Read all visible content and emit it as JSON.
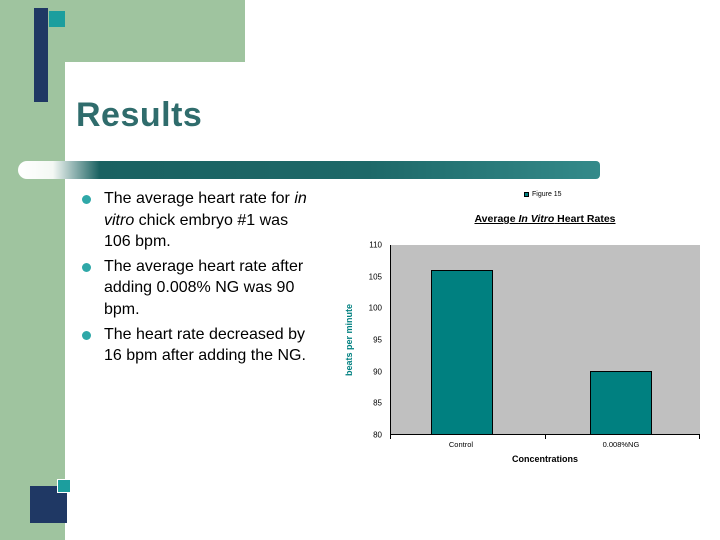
{
  "slide": {
    "title": "Results"
  },
  "theme": {
    "background_green": "#9fc49f",
    "navy_accent": "#1f3864",
    "teal_accent": "#1c9e9e",
    "title_color": "#2f6c6c",
    "divider_teal": "#1d6868",
    "bullet_dot_color": "#2fa8a8"
  },
  "bullets": {
    "items": [
      {
        "pre": "The average heart rate for ",
        "italic": "in vitro",
        "post": " chick embryo #1 was 106 bpm."
      },
      {
        "pre": "The average heart rate after adding 0.008% NG was 90 bpm.",
        "italic": "",
        "post": ""
      },
      {
        "pre": "The heart rate decreased by 16 bpm after adding the NG.",
        "italic": "",
        "post": ""
      }
    ]
  },
  "chart_data": {
    "type": "bar",
    "title": {
      "pre": "Average ",
      "italic": "In Vitro",
      "post": " Heart Rates"
    },
    "series_name": "Figure 15",
    "categories": [
      "Control",
      "0.008%NG"
    ],
    "values": [
      106,
      90
    ],
    "xlabel": "Concentrations",
    "ylabel": "beats per minute",
    "ylim": [
      80,
      110
    ],
    "yticks": [
      110,
      105,
      100,
      95,
      90,
      85,
      80
    ],
    "grid": false,
    "legend_position": "top-right",
    "plot_bg": "#c0c0c0",
    "bar_color": "#008080"
  }
}
